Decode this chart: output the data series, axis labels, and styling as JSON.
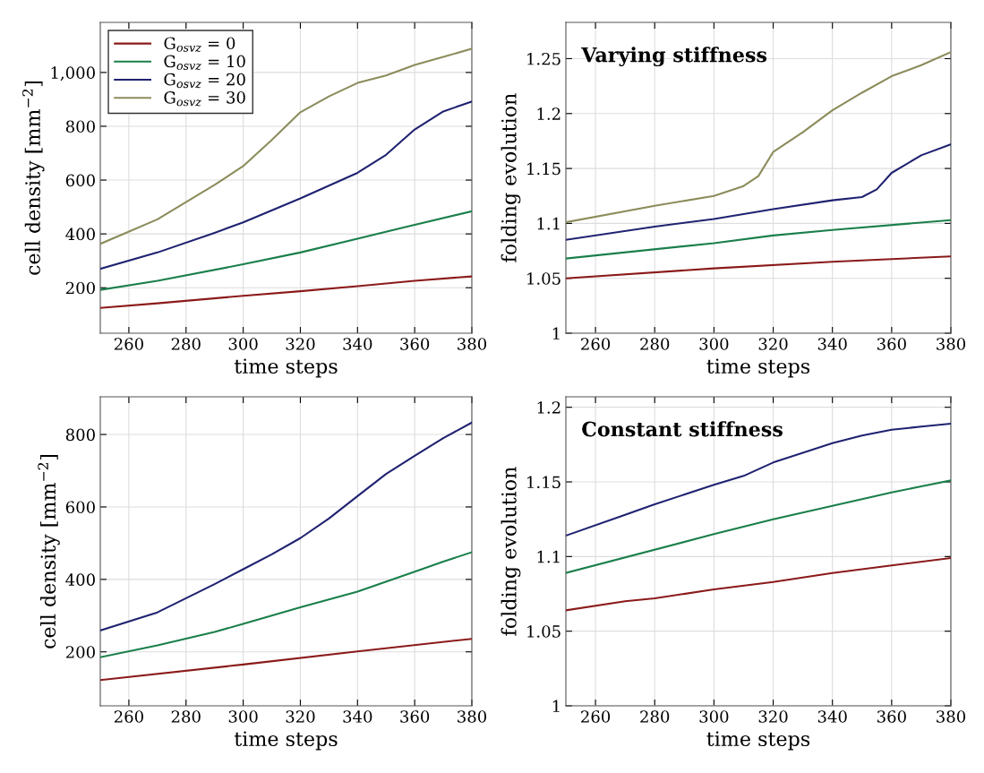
{
  "chart_data": [
    {
      "type": "line",
      "xlabel": "time steps",
      "ylabel": "cell density [mm$^{−2}$]",
      "xlim": [
        250,
        380
      ],
      "xticks": [
        260,
        280,
        300,
        320,
        340,
        360,
        380
      ],
      "ylim": [
        31,
        1186
      ],
      "yticks": [
        200,
        400,
        600,
        800,
        {
          "value": 1000,
          "label": "1,000"
        }
      ],
      "grid": true,
      "legend": "top left",
      "line_style": "solid",
      "marker": "none",
      "series": [
        {
          "name": "G$_{osvz}$ = 0",
          "color": "#8b1a1a",
          "x": [
            250,
            270,
            300,
            320,
            340,
            360,
            380
          ],
          "values": [
            125,
            142,
            170,
            187,
            206,
            226,
            242
          ]
        },
        {
          "name": "G$_{osvz}$ = 10",
          "color": "#1a7f4a",
          "x": [
            250,
            270,
            300,
            320,
            340,
            360,
            380
          ],
          "values": [
            192,
            226,
            287,
            331,
            382,
            434,
            484
          ]
        },
        {
          "name": "G$_{osvz}$ = 20",
          "color": "#1f2270",
          "x": [
            250,
            270,
            290,
            300,
            320,
            340,
            350,
            360,
            370,
            380
          ],
          "values": [
            270,
            331,
            404,
            443,
            532,
            627,
            694,
            788,
            855,
            892
          ]
        },
        {
          "name": "G$_{osvz}$ = 30",
          "color": "#8c8c5c",
          "x": [
            250,
            270,
            290,
            300,
            310,
            320,
            330,
            340,
            350,
            360,
            370,
            380
          ],
          "values": [
            363,
            454,
            582,
            652,
            749,
            852,
            911,
            961,
            989,
            1028,
            1058,
            1088
          ]
        }
      ]
    },
    {
      "type": "line",
      "xlabel": "time steps",
      "ylabel": "folding evolution",
      "annotations": [
        "Varying stiffness"
      ],
      "xlim": [
        250,
        380
      ],
      "xticks": [
        260,
        280,
        300,
        320,
        340,
        360,
        380
      ],
      "ylim": [
        1,
        1.283
      ],
      "yticks": [
        1,
        1.05,
        1.1,
        1.15,
        1.2,
        1.25
      ],
      "grid": true,
      "line_style": "solid",
      "marker": "none",
      "series": [
        {
          "color": "#8b1a1a",
          "x": [
            250,
            300,
            340,
            380
          ],
          "values": [
            1.05,
            1.059,
            1.065,
            1.07
          ]
        },
        {
          "color": "#1a7f4a",
          "x": [
            250,
            300,
            320,
            340,
            380
          ],
          "values": [
            1.068,
            1.082,
            1.089,
            1.094,
            1.103
          ]
        },
        {
          "color": "#1f2270",
          "x": [
            250,
            280,
            300,
            320,
            340,
            350,
            355,
            360,
            370,
            380
          ],
          "values": [
            1.085,
            1.097,
            1.104,
            1.113,
            1.121,
            1.124,
            1.131,
            1.146,
            1.162,
            1.172
          ]
        },
        {
          "color": "#8c8c5c",
          "x": [
            250,
            280,
            300,
            310,
            315,
            320,
            330,
            340,
            350,
            360,
            370,
            380
          ],
          "values": [
            1.101,
            1.116,
            1.125,
            1.134,
            1.143,
            1.165,
            1.183,
            1.203,
            1.219,
            1.234,
            1.244,
            1.256
          ]
        }
      ]
    },
    {
      "type": "line",
      "xlabel": "time steps",
      "ylabel": "cell density [mm$^{−2}$]",
      "xlim": [
        250,
        380
      ],
      "xticks": [
        260,
        280,
        300,
        320,
        340,
        360,
        380
      ],
      "ylim": [
        51,
        904
      ],
      "yticks": [
        200,
        400,
        600,
        800
      ],
      "grid": true,
      "line_style": "solid",
      "marker": "none",
      "series": [
        {
          "color": "#8b1a1a",
          "x": [
            250,
            300,
            340,
            380
          ],
          "values": [
            122,
            165,
            201,
            236
          ]
        },
        {
          "color": "#1a7f4a",
          "x": [
            250,
            270,
            290,
            300,
            320,
            340,
            360,
            370,
            380
          ],
          "values": [
            185,
            218,
            255,
            277,
            323,
            366,
            421,
            449,
            475
          ]
        },
        {
          "color": "#1f2270",
          "x": [
            250,
            270,
            290,
            300,
            310,
            320,
            330,
            340,
            350,
            360,
            370,
            380
          ],
          "values": [
            259,
            309,
            387,
            428,
            469,
            514,
            568,
            630,
            691,
            741,
            790,
            833
          ]
        }
      ]
    },
    {
      "type": "line",
      "xlabel": "time steps",
      "ylabel": "folding evolution",
      "annotations": [
        "Constant stiffness"
      ],
      "xlim": [
        250,
        380
      ],
      "xticks": [
        260,
        280,
        300,
        320,
        340,
        360,
        380
      ],
      "ylim": [
        1,
        1.207
      ],
      "yticks": [
        1,
        1.05,
        1.1,
        1.15,
        1.2
      ],
      "grid": true,
      "line_style": "solid",
      "marker": "none",
      "series": [
        {
          "color": "#8b1a1a",
          "x": [
            250,
            270,
            280,
            300,
            320,
            340,
            360,
            380
          ],
          "values": [
            1.064,
            1.07,
            1.072,
            1.078,
            1.083,
            1.089,
            1.094,
            1.099
          ]
        },
        {
          "color": "#1a7f4a",
          "x": [
            250,
            300,
            320,
            340,
            360,
            370,
            380
          ],
          "values": [
            1.089,
            1.115,
            1.125,
            1.134,
            1.143,
            1.147,
            1.151
          ]
        },
        {
          "color": "#1f2270",
          "x": [
            250,
            270,
            280,
            300,
            310,
            320,
            340,
            350,
            360,
            370,
            380
          ],
          "values": [
            1.114,
            1.128,
            1.135,
            1.148,
            1.154,
            1.163,
            1.176,
            1.181,
            1.185,
            1.187,
            1.189
          ]
        }
      ]
    }
  ]
}
